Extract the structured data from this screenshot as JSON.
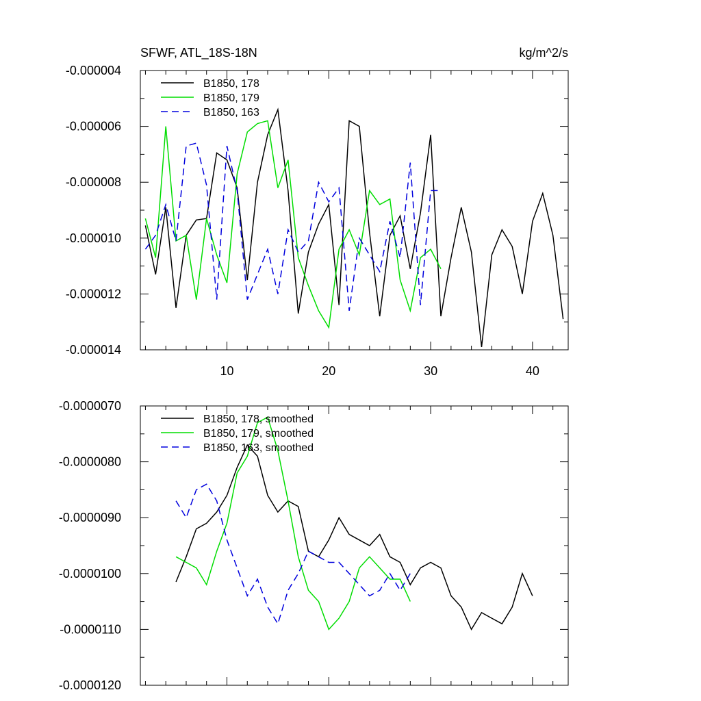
{
  "chart_data": [
    {
      "type": "line",
      "title": "SFWF, ATL_18S-18N",
      "units": "kg/m^2/s",
      "xlim": [
        1.5,
        43.5
      ],
      "ylim": [
        -1.4e-05,
        -4e-06
      ],
      "x_ticks_major": [
        10,
        20,
        30,
        40
      ],
      "x_tick_labels": [
        "10",
        "20",
        "30",
        "40"
      ],
      "x_ticks_minor": [
        2,
        4,
        6,
        8,
        12,
        14,
        16,
        18,
        22,
        24,
        26,
        28,
        32,
        34,
        36,
        38,
        42
      ],
      "y_ticks_major": [
        -4e-06,
        -6e-06,
        -8e-06,
        -1e-05,
        -1.2e-05,
        -1.4e-05
      ],
      "y_tick_labels": [
        "-0.000004",
        "-0.000006",
        "-0.000008",
        "-0.000010",
        "-0.000012",
        "-0.000014"
      ],
      "y_ticks_minor": [
        -5e-06,
        -7e-06,
        -9e-06,
        -1.1e-05,
        -1.3e-05
      ],
      "legend_position": "top-left",
      "series": [
        {
          "name": "B1850, 178",
          "color": "#000000",
          "dash": "solid",
          "x": [
            2,
            3,
            4,
            5,
            6,
            7,
            8,
            9,
            10,
            11,
            12,
            13,
            14,
            15,
            16,
            17,
            18,
            19,
            20,
            21,
            22,
            23,
            24,
            25,
            26,
            27,
            28,
            29,
            30,
            31,
            32,
            33,
            34,
            35,
            36,
            37,
            38,
            39,
            40,
            41,
            42,
            43
          ],
          "y": [
            -9.55e-06,
            -1.13e-05,
            -8.9e-06,
            -1.25e-05,
            -9.9e-06,
            -9.35e-06,
            -9.3e-06,
            -6.95e-06,
            -7.2e-06,
            -8.2e-06,
            -1.15e-05,
            -8e-06,
            -6.3e-06,
            -5.4e-06,
            -8.3e-06,
            -1.27e-05,
            -1.05e-05,
            -9.5e-06,
            -8.8e-06,
            -1.24e-05,
            -5.8e-06,
            -6e-06,
            -9.8e-06,
            -1.28e-05,
            -9.9e-06,
            -9.2e-06,
            -1.11e-05,
            -9.1e-06,
            -6.3e-06,
            -1.28e-05,
            -1.07e-05,
            -8.9e-06,
            -1.05e-05,
            -1.39e-05,
            -1.06e-05,
            -9.7e-06,
            -1.03e-05,
            -1.2e-05,
            -9.4e-06,
            -8.4e-06,
            -9.9e-06,
            -1.29e-05
          ]
        },
        {
          "name": "B1850, 179",
          "color": "#00dd00",
          "dash": "solid",
          "x": [
            2,
            3,
            4,
            5,
            6,
            7,
            8,
            9,
            10,
            11,
            12,
            13,
            14,
            15,
            16,
            17,
            18,
            19,
            20,
            21,
            22,
            23,
            24,
            25,
            26,
            27,
            28,
            29,
            30,
            31
          ],
          "y": [
            -9.3e-06,
            -1.07e-05,
            -6e-06,
            -1.01e-05,
            -9.9e-06,
            -1.22e-05,
            -9.3e-06,
            -1.06e-05,
            -1.16e-05,
            -7.7e-06,
            -6.2e-06,
            -5.9e-06,
            -5.8e-06,
            -8.2e-06,
            -7.2e-06,
            -1.07e-05,
            -1.17e-05,
            -1.26e-05,
            -1.32e-05,
            -1.04e-05,
            -9.7e-06,
            -1.06e-05,
            -8.3e-06,
            -8.8e-06,
            -8.6e-06,
            -1.15e-05,
            -1.26e-05,
            -1.07e-05,
            -1.04e-05,
            -1.11e-05
          ]
        },
        {
          "name": "B1850, 163",
          "color": "#0000dd",
          "dash": "dashed",
          "x": [
            2,
            3,
            4,
            5,
            6,
            7,
            8,
            9,
            10,
            11,
            12,
            13,
            14,
            15,
            16,
            17,
            18,
            19,
            20,
            21,
            22,
            23,
            24,
            25,
            26,
            27,
            28,
            29,
            30,
            31
          ],
          "y": [
            -1.04e-05,
            -9.9e-06,
            -8.8e-06,
            -1.01e-05,
            -6.7e-06,
            -6.6e-06,
            -8.1e-06,
            -1.22e-05,
            -6.7e-06,
            -8.3e-06,
            -1.22e-05,
            -1.13e-05,
            -1.04e-05,
            -1.2e-05,
            -9.7e-06,
            -1.05e-05,
            -1.01e-05,
            -8e-06,
            -8.7e-06,
            -8.2e-06,
            -1.26e-05,
            -1e-05,
            -1.06e-05,
            -1.12e-05,
            -9.4e-06,
            -1.07e-05,
            -7.3e-06,
            -1.24e-05,
            -8.3e-06,
            -8.3e-06
          ]
        }
      ]
    },
    {
      "type": "line",
      "title": "",
      "xlim": [
        1.5,
        43.5
      ],
      "ylim": [
        -1.2e-05,
        -7e-06
      ],
      "x_ticks_major": [
        10,
        20,
        30,
        40
      ],
      "x_ticks_minor": [
        2,
        4,
        6,
        8,
        12,
        14,
        16,
        18,
        22,
        24,
        26,
        28,
        32,
        34,
        36,
        38,
        42
      ],
      "y_ticks_major": [
        -7e-06,
        -8e-06,
        -9e-06,
        -1e-05,
        -1.1e-05,
        -1.2e-05
      ],
      "y_tick_labels": [
        "-0.0000070",
        "-0.0000080",
        "-0.0000090",
        "-0.0000100",
        "-0.0000110",
        "-0.0000120"
      ],
      "y_ticks_minor": [
        -7.5e-06,
        -8.5e-06,
        -9.5e-06,
        -1.05e-05,
        -1.15e-05
      ],
      "legend_position": "top-left",
      "series": [
        {
          "name": "B1850, 178, smoothed",
          "color": "#000000",
          "dash": "solid",
          "x": [
            5,
            6,
            7,
            8,
            9,
            10,
            11,
            12,
            13,
            14,
            15,
            16,
            17,
            18,
            19,
            20,
            21,
            22,
            23,
            24,
            25,
            26,
            27,
            28,
            29,
            30,
            31,
            32,
            33,
            34,
            35,
            36,
            37,
            38,
            39,
            40
          ],
          "y": [
            -1.015e-05,
            -9.7e-06,
            -9.2e-06,
            -9.1e-06,
            -8.9e-06,
            -8.6e-06,
            -8.1e-06,
            -7.7e-06,
            -7.9e-06,
            -8.6e-06,
            -8.9e-06,
            -8.7e-06,
            -8.8e-06,
            -9.6e-06,
            -9.7e-06,
            -9.4e-06,
            -9e-06,
            -9.3e-06,
            -9.4e-06,
            -9.5e-06,
            -9.3e-06,
            -9.7e-06,
            -9.8e-06,
            -1.02e-05,
            -9.9e-06,
            -9.8e-06,
            -9.9e-06,
            -1.04e-05,
            -1.06e-05,
            -1.1e-05,
            -1.07e-05,
            -1.08e-05,
            -1.09e-05,
            -1.06e-05,
            -1e-05,
            -1.04e-05
          ]
        },
        {
          "name": "B1850, 179, smoothed",
          "color": "#00dd00",
          "dash": "solid",
          "x": [
            5,
            6,
            7,
            8,
            9,
            10,
            11,
            12,
            13,
            14,
            15,
            16,
            17,
            18,
            19,
            20,
            21,
            22,
            23,
            24,
            25,
            26,
            27,
            28
          ],
          "y": [
            -9.7e-06,
            -9.8e-06,
            -9.9e-06,
            -1.02e-05,
            -9.6e-06,
            -9.1e-06,
            -8.2e-06,
            -7.9e-06,
            -7.3e-06,
            -7.2e-06,
            -7.8e-06,
            -8.7e-06,
            -9.7e-06,
            -1.03e-05,
            -1.05e-05,
            -1.1e-05,
            -1.08e-05,
            -1.05e-05,
            -9.9e-06,
            -9.7e-06,
            -9.9e-06,
            -1.01e-05,
            -1.01e-05,
            -1.05e-05
          ]
        },
        {
          "name": "B1850, 163, smoothed",
          "color": "#0000dd",
          "dash": "dashed",
          "x": [
            5,
            6,
            7,
            8,
            9,
            10,
            11,
            12,
            13,
            14,
            15,
            16,
            17,
            18,
            19,
            20,
            21,
            22,
            23,
            24,
            25,
            26,
            27,
            28
          ],
          "y": [
            -8.7e-06,
            -9e-06,
            -8.5e-06,
            -8.4e-06,
            -8.7e-06,
            -9.4e-06,
            -9.9e-06,
            -1.04e-05,
            -1.01e-05,
            -1.06e-05,
            -1.09e-05,
            -1.03e-05,
            -1e-05,
            -9.6e-06,
            -9.7e-06,
            -9.8e-06,
            -9.8e-06,
            -1e-05,
            -1.02e-05,
            -1.04e-05,
            -1.03e-05,
            -1e-05,
            -1.03e-05,
            -1e-05
          ]
        }
      ]
    }
  ]
}
